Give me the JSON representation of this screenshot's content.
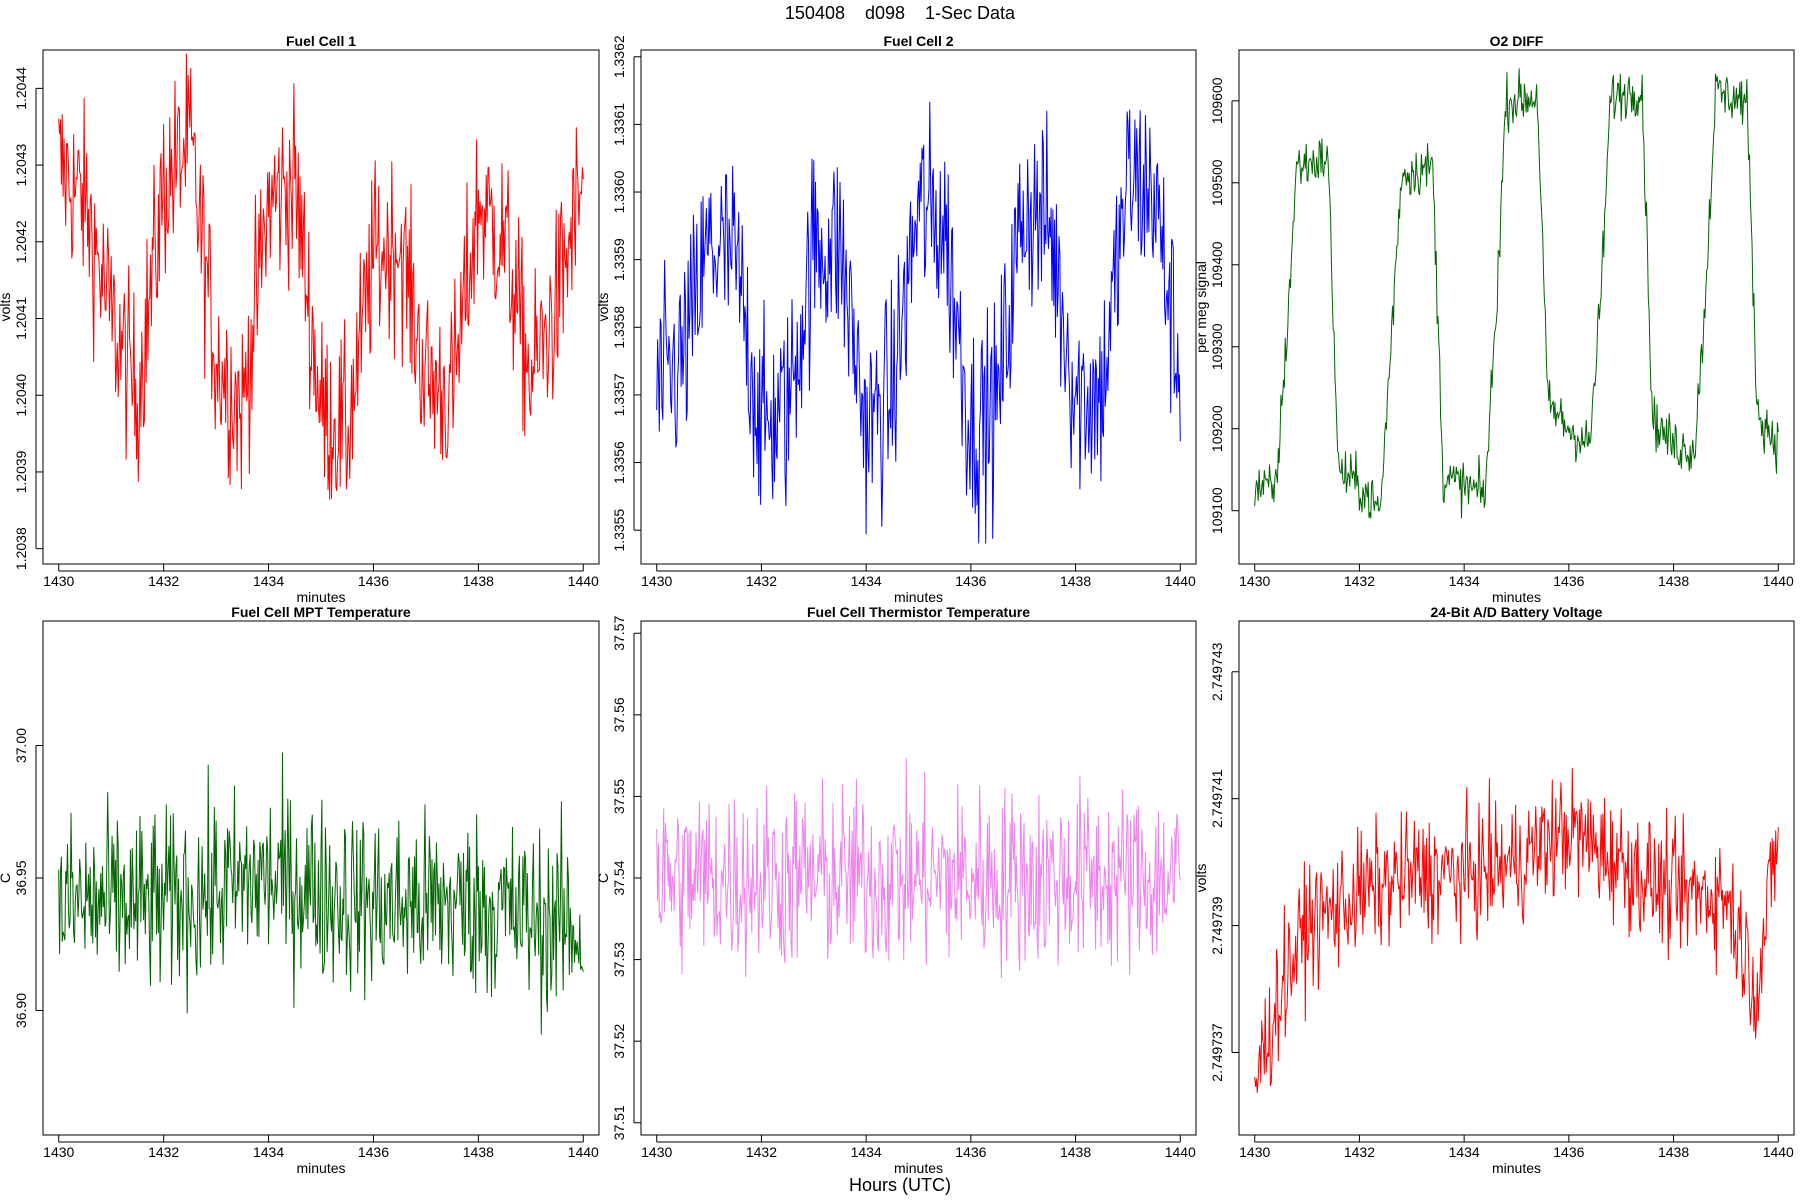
{
  "figure": {
    "title": "150408    d098    1-Sec Data",
    "outer_xlabel": "Hours (UTC)"
  },
  "chart_data": [
    {
      "type": "line",
      "title": "Fuel Cell 1",
      "xlabel": "minutes",
      "ylabel": "volts",
      "color": "#ff0000",
      "xlim": [
        1429.7,
        1440.3
      ],
      "ylim": [
        1.20378,
        1.20445
      ],
      "xticks": [
        1430,
        1432,
        1434,
        1436,
        1438,
        1440
      ],
      "yticks": [
        1.2038,
        1.2039,
        1.204,
        1.2041,
        1.2042,
        1.2043,
        1.2044
      ],
      "ytick_labels": [
        "1.2038",
        "1.2039",
        "1.2040",
        "1.2041",
        "1.2042",
        "1.2043",
        "1.2044"
      ],
      "series": [
        {
          "x": [
            1430.0,
            1430.5,
            1431.0,
            1431.5,
            1432.0,
            1432.5,
            1433.0,
            1433.5,
            1434.0,
            1434.5,
            1435.0,
            1435.5,
            1436.0,
            1436.5,
            1437.0,
            1437.5,
            1438.0,
            1438.5,
            1439.0,
            1439.5,
            1440.0
          ],
          "y": [
            1.2043,
            1.20425,
            1.2041,
            1.204,
            1.20427,
            1.20433,
            1.20405,
            1.20398,
            1.20425,
            1.20428,
            1.20398,
            1.20395,
            1.20418,
            1.2042,
            1.20402,
            1.204,
            1.20425,
            1.2042,
            1.20402,
            1.20412,
            1.20428
          ]
        }
      ]
    },
    {
      "type": "line",
      "title": "Fuel Cell 2",
      "xlabel": "minutes",
      "ylabel": "volts",
      "color": "#0000ff",
      "xlim": [
        1429.7,
        1440.3
      ],
      "ylim": [
        1.33545,
        1.33621
      ],
      "xticks": [
        1430,
        1432,
        1434,
        1436,
        1438,
        1440
      ],
      "yticks": [
        1.3355,
        1.3356,
        1.3357,
        1.3358,
        1.3359,
        1.336,
        1.3361,
        1.3362
      ],
      "ytick_labels": [
        "1.3355",
        "1.3356",
        "1.3357",
        "1.3358",
        "1.3359",
        "1.3360",
        "1.3361",
        "1.3362"
      ],
      "series": [
        {
          "x": [
            1430.0,
            1430.5,
            1431.0,
            1431.5,
            1432.0,
            1432.5,
            1433.0,
            1433.5,
            1434.0,
            1434.5,
            1435.0,
            1435.5,
            1436.0,
            1436.5,
            1437.0,
            1437.5,
            1438.0,
            1438.5,
            1439.0,
            1439.5,
            1440.0
          ],
          "y": [
            1.3357,
            1.33575,
            1.33592,
            1.3359,
            1.33565,
            1.33568,
            1.33592,
            1.33592,
            1.33565,
            1.3357,
            1.33598,
            1.33595,
            1.33565,
            1.33568,
            1.33598,
            1.33595,
            1.3357,
            1.3357,
            1.33602,
            1.336,
            1.33572
          ]
        }
      ]
    },
    {
      "type": "line",
      "title": "O2 DIFF",
      "xlabel": "minutes",
      "ylabel": "per meg signal",
      "color": "#006400",
      "xlim": [
        1429.7,
        1440.3
      ],
      "ylim": [
        109035,
        109662
      ],
      "xticks": [
        1430,
        1432,
        1434,
        1436,
        1438,
        1440
      ],
      "yticks": [
        109100,
        109200,
        109300,
        109400,
        109500,
        109600
      ],
      "ytick_labels": [
        "109100",
        "109200",
        "109300",
        "109400",
        "109500",
        "109600"
      ],
      "series": [
        {
          "x": [
            1430.0,
            1430.4,
            1430.6,
            1430.8,
            1431.4,
            1431.6,
            1432.0,
            1432.4,
            1432.6,
            1432.8,
            1433.4,
            1433.6,
            1434.0,
            1434.4,
            1434.6,
            1434.8,
            1435.4,
            1435.6,
            1436.0,
            1436.4,
            1436.6,
            1436.8,
            1437.4,
            1437.6,
            1438.0,
            1438.4,
            1438.6,
            1438.8,
            1439.4,
            1439.6,
            1440.0
          ],
          "y": [
            109130,
            109125,
            109300,
            109520,
            109530,
            109150,
            109130,
            109100,
            109300,
            109510,
            109520,
            109140,
            109130,
            109120,
            109330,
            109600,
            109605,
            109230,
            109200,
            109180,
            109350,
            109605,
            109615,
            109210,
            109180,
            109175,
            109350,
            109610,
            109600,
            109220,
            109180
          ]
        }
      ]
    },
    {
      "type": "line",
      "title": "Fuel Cell MPT Temperature",
      "xlabel": "minutes",
      "ylabel": "C",
      "color": "#006400",
      "xlim": [
        1429.7,
        1440.3
      ],
      "ylim": [
        36.853,
        37.047
      ],
      "xticks": [
        1430,
        1432,
        1434,
        1436,
        1438,
        1440
      ],
      "yticks": [
        36.9,
        36.95,
        37.0
      ],
      "ytick_labels": [
        "36.90",
        "36.95",
        "37.00"
      ],
      "series": [
        {
          "x": [
            1430.0,
            1432.0,
            1434.0,
            1436.0,
            1438.0,
            1440.0
          ],
          "y": [
            36.94,
            36.94,
            36.95,
            36.94,
            36.94,
            36.93
          ]
        }
      ]
    },
    {
      "type": "line",
      "title": "Fuel Cell Thermistor Temperature",
      "xlabel": "minutes",
      "ylabel": "C",
      "color": "#ee82ee",
      "xlim": [
        1429.7,
        1440.3
      ],
      "ylim": [
        37.5085,
        37.5715
      ],
      "xticks": [
        1430,
        1432,
        1434,
        1436,
        1438,
        1440
      ],
      "yticks": [
        37.51,
        37.52,
        37.53,
        37.54,
        37.55,
        37.56,
        37.57
      ],
      "ytick_labels": [
        "37.51",
        "37.52",
        "37.53",
        "37.54",
        "37.55",
        "37.56",
        "37.57"
      ],
      "series": [
        {
          "x": [
            1430.0,
            1432.0,
            1434.0,
            1436.0,
            1438.0,
            1440.0
          ],
          "y": [
            37.54,
            37.54,
            37.54,
            37.54,
            37.54,
            37.54
          ]
        }
      ]
    },
    {
      "type": "line",
      "title": "24-Bit A/D Battery Voltage",
      "xlabel": "minutes",
      "ylabel": "volts",
      "color": "#ff0000",
      "xlim": [
        1429.7,
        1440.3
      ],
      "ylim": [
        2.7497357,
        2.7497438
      ],
      "xticks": [
        1430,
        1432,
        1434,
        1436,
        1438,
        1440
      ],
      "yticks": [
        2.749737,
        2.749739,
        2.749741,
        2.749743
      ],
      "ytick_labels": [
        "2.749737",
        "2.749739",
        "2.749741",
        "2.749743"
      ],
      "series": [
        {
          "x": [
            1430.0,
            1430.5,
            1431.0,
            1432.0,
            1433.0,
            1434.0,
            1435.0,
            1436.0,
            1437.0,
            1438.0,
            1439.0,
            1439.6,
            1440.0
          ],
          "y": [
            2.7497365,
            2.749738,
            2.749739,
            2.7497395,
            2.7497398,
            2.7497398,
            2.74974,
            2.7497405,
            2.74974,
            2.7497395,
            2.7497395,
            2.749738,
            2.7497405
          ]
        }
      ]
    }
  ]
}
